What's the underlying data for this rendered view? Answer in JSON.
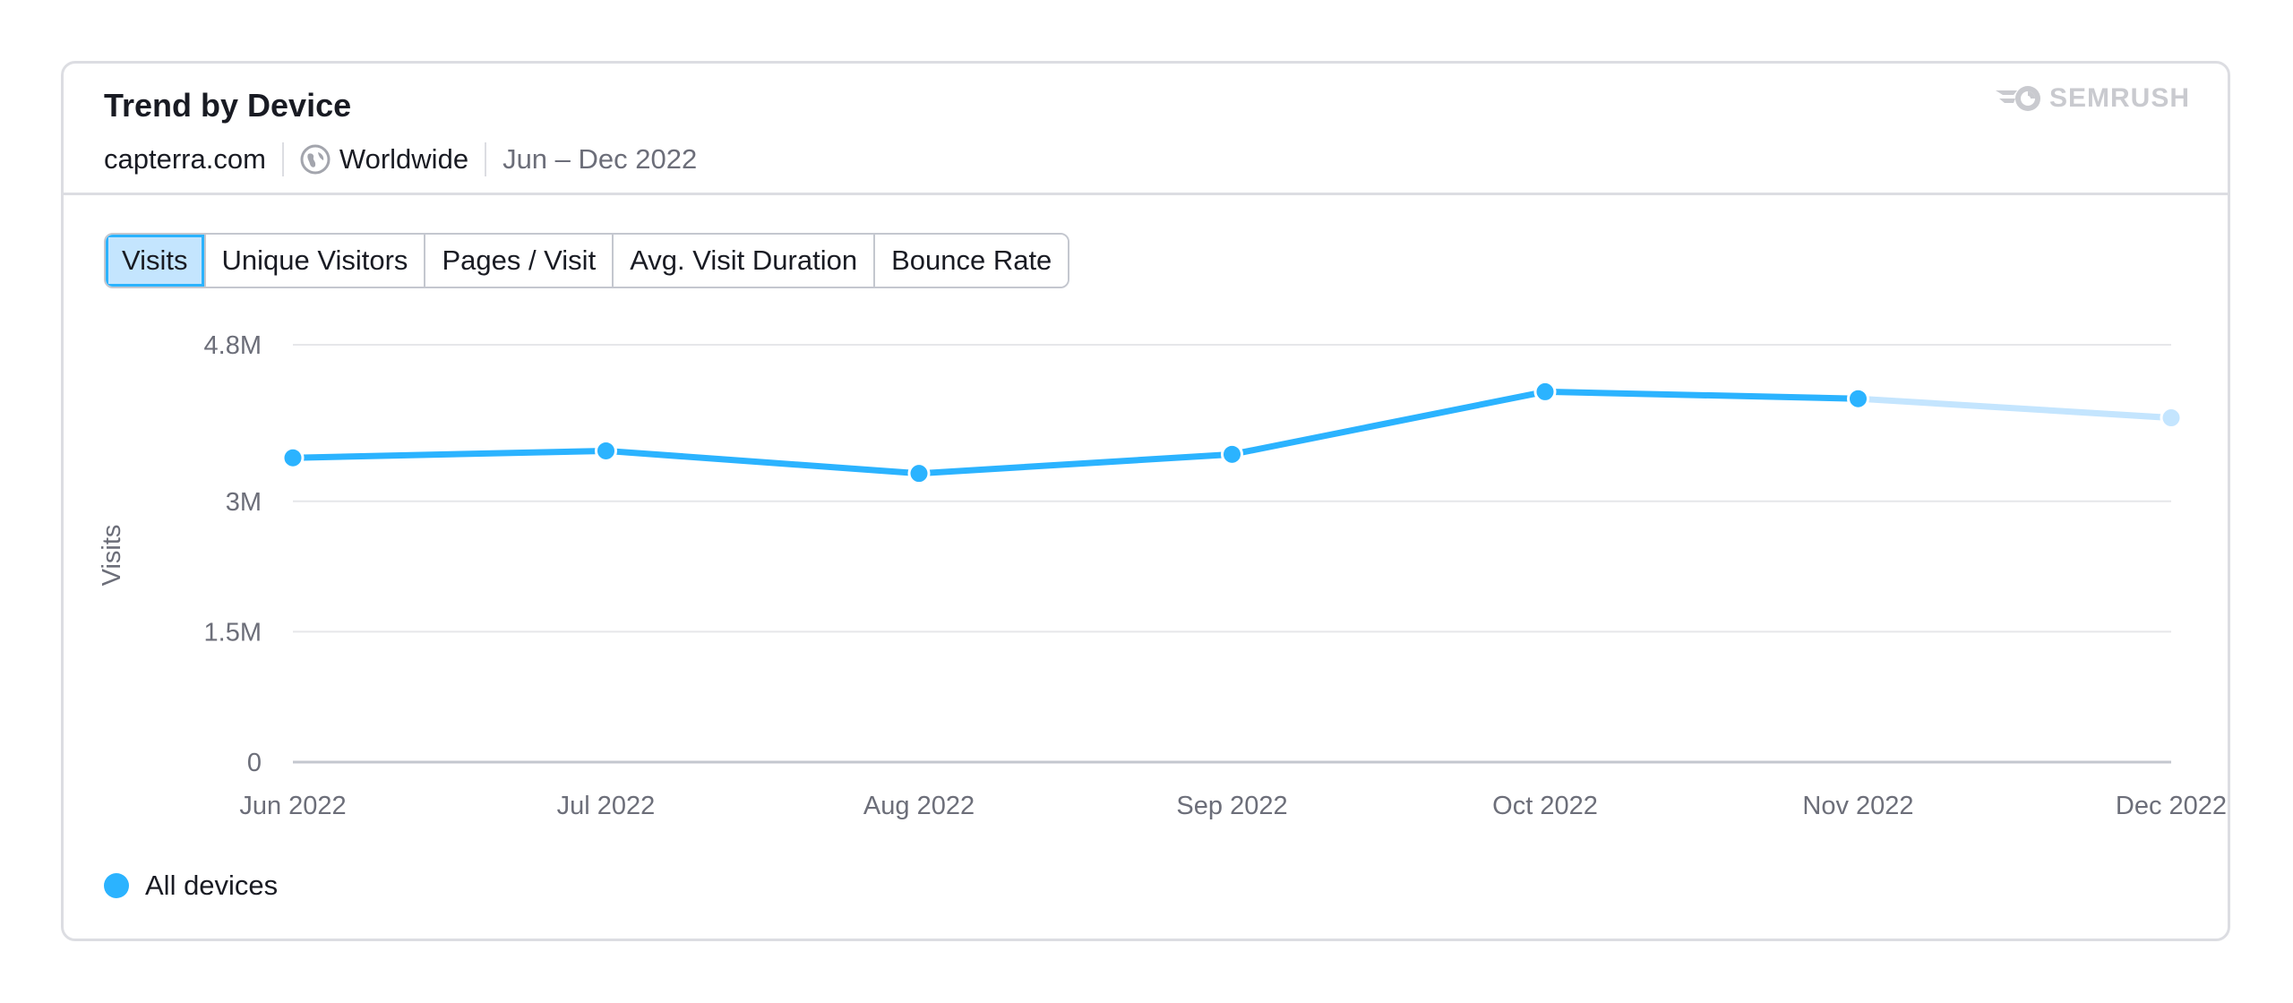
{
  "header": {
    "title": "Trend by Device",
    "domain": "capterra.com",
    "region": "Worldwide",
    "date_range": "Jun – Dec 2022",
    "brand": "SEMRUSH"
  },
  "tabs": [
    {
      "label": "Visits",
      "active": true
    },
    {
      "label": "Unique Visitors",
      "active": false
    },
    {
      "label": "Pages / Visit",
      "active": false
    },
    {
      "label": "Avg. Visit Duration",
      "active": false
    },
    {
      "label": "Bounce Rate",
      "active": false
    }
  ],
  "legend": [
    {
      "label": "All devices",
      "color": "#2bb3ff"
    }
  ],
  "colors": {
    "series": "#2bb3ff",
    "series_projected": "#c4e5fe",
    "grid": "#e6e7ea",
    "axis": "#c4c7cf",
    "tick_text": "#6c6e79"
  },
  "chart_data": {
    "type": "line",
    "title": "Trend by Device",
    "xlabel": "",
    "ylabel": "Visits",
    "categories": [
      "Jun 2022",
      "Jul 2022",
      "Aug 2022",
      "Sep 2022",
      "Oct 2022",
      "Nov 2022",
      "Dec 2022"
    ],
    "series": [
      {
        "name": "All devices",
        "values": [
          3.5,
          3.58,
          3.32,
          3.54,
          4.26,
          4.18,
          3.96
        ],
        "unit": "M",
        "note": "Dec 2022 segment shown lighter (incomplete period)"
      }
    ],
    "yticks": [
      0,
      1.5,
      3,
      4.8
    ],
    "ytick_labels": [
      "0",
      "1.5M",
      "3M",
      "4.8M"
    ],
    "ylim": [
      0,
      4.8
    ],
    "grid": true,
    "legend_position": "bottom-left"
  }
}
